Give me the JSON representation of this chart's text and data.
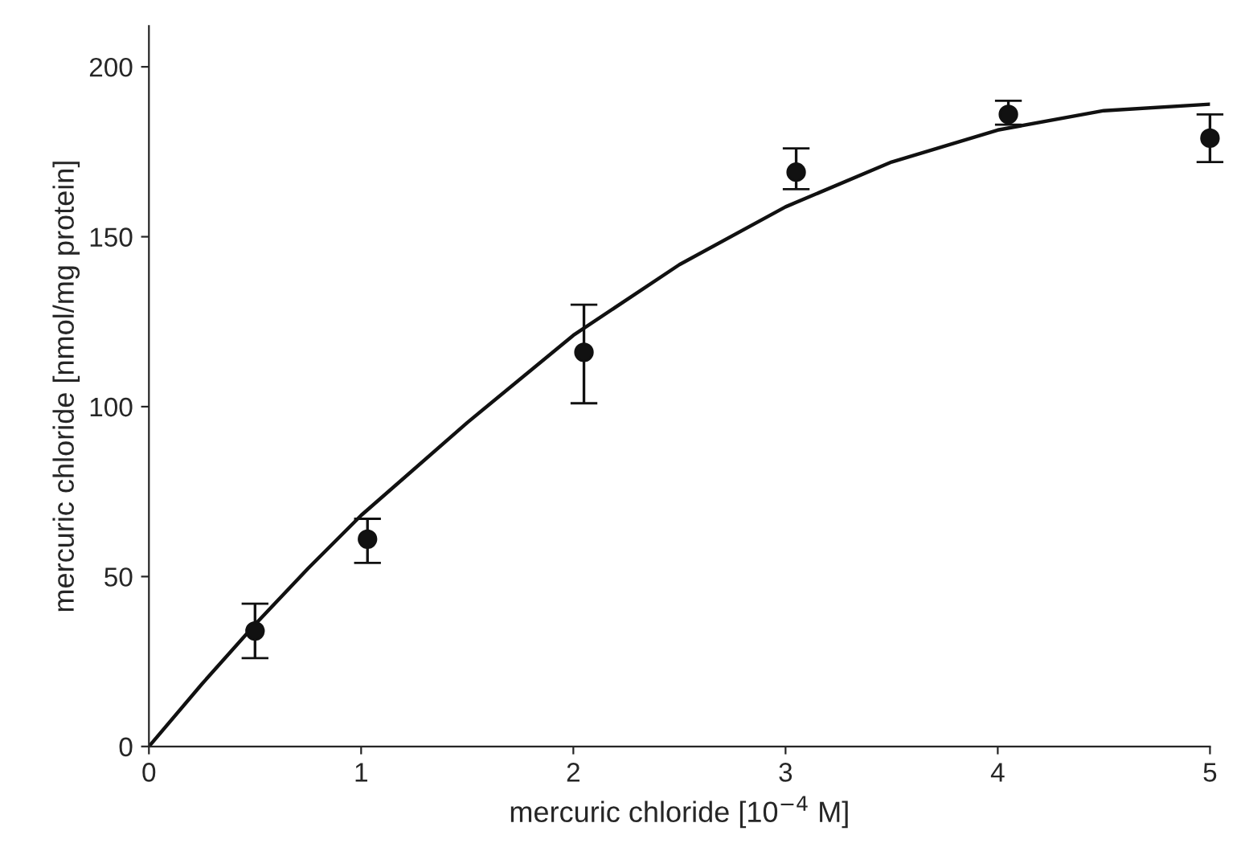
{
  "chart_data": {
    "type": "scatter",
    "xlabel": "mercuric chloride [10$^{−4}$ M]",
    "ylabel": "mercuric chloride [nmol/mg protein]",
    "xlim": [
      0,
      5
    ],
    "xticks": [
      0,
      1,
      2,
      3,
      4,
      5
    ],
    "ylim": [
      0,
      212
    ],
    "yticks": [
      0,
      50,
      100,
      150,
      200
    ],
    "grid": false,
    "legend": false,
    "series": [
      {
        "color": "#111111",
        "marker": "circle",
        "x": [
          0.5,
          1.03,
          2.05,
          3.05,
          4.05,
          5.0
        ],
        "values": [
          34,
          61,
          116,
          169,
          186,
          179
        ],
        "errors": [
          [
            26,
            42
          ],
          [
            54,
            67
          ],
          [
            101,
            130
          ],
          [
            164,
            176
          ],
          [
            183,
            190
          ],
          [
            172,
            186
          ]
        ]
      },
      {
        "type": "line",
        "color": "#111111",
        "marker": "none",
        "line_style": "solid",
        "x": [
          0,
          0.25,
          0.5,
          0.75,
          1,
          1.5,
          2,
          2.5,
          3,
          3.5,
          4,
          4.5,
          5
        ],
        "values": [
          0,
          18.4,
          35.9,
          52.4,
          68,
          95.3,
          121,
          141.8,
          158.8,
          172,
          181.4,
          187.1,
          189
        ]
      }
    ]
  }
}
